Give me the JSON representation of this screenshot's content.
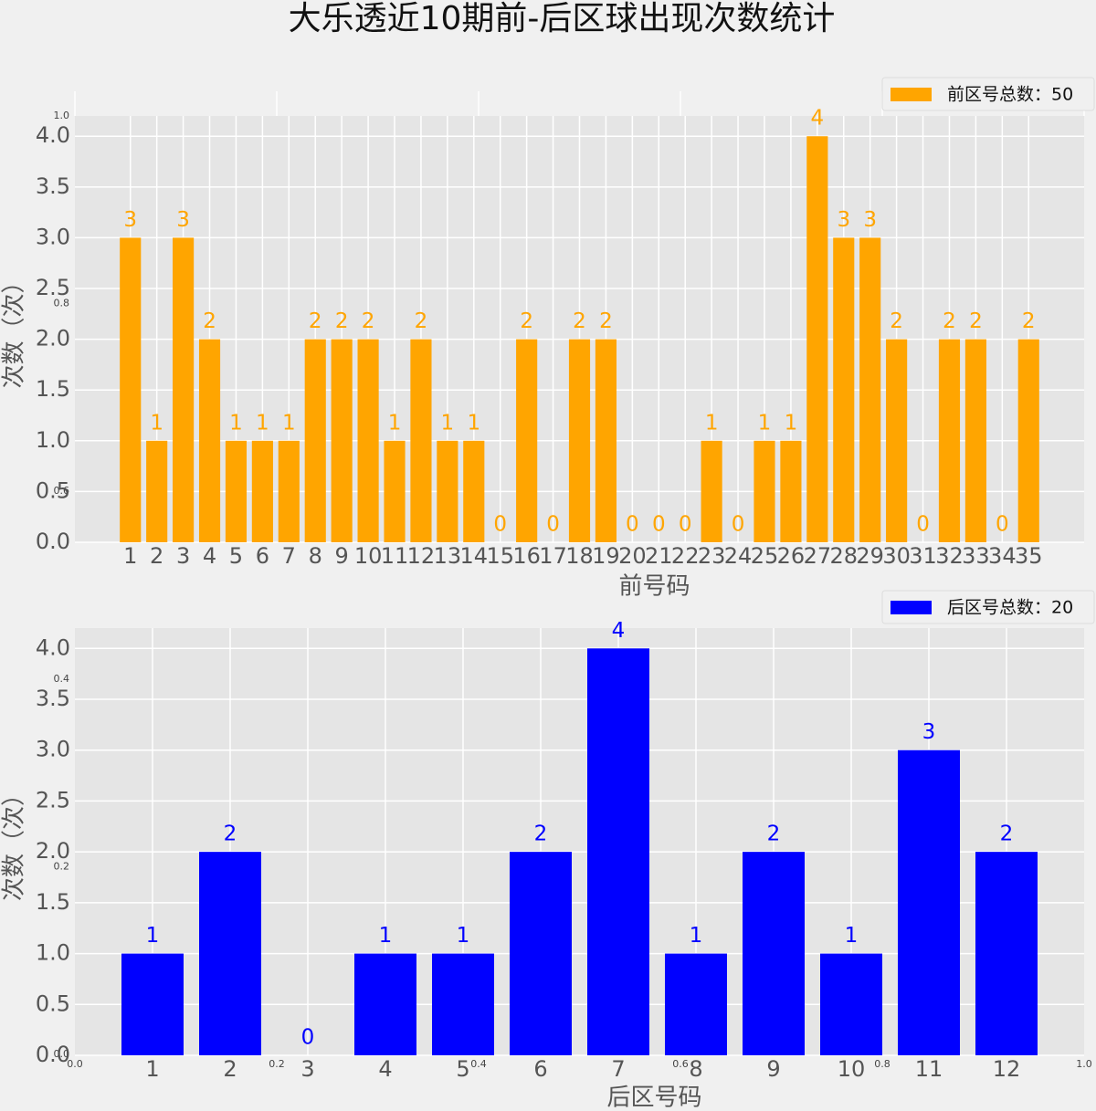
{
  "title": "大乐透近10期前-后区球出现次数统计",
  "chart_data": [
    {
      "type": "bar",
      "xlabel": "前号码",
      "ylabel": "次数（次）",
      "categories": [
        "1",
        "2",
        "3",
        "4",
        "5",
        "6",
        "7",
        "8",
        "9",
        "10",
        "11",
        "12",
        "13",
        "14",
        "15",
        "16",
        "17",
        "18",
        "19",
        "20",
        "21",
        "22",
        "23",
        "24",
        "25",
        "26",
        "27",
        "28",
        "29",
        "30",
        "31",
        "32",
        "33",
        "34",
        "35"
      ],
      "series": [
        {
          "name": "前区号总数：50",
          "color": "#ffa500",
          "values": [
            3,
            1,
            3,
            2,
            1,
            1,
            1,
            2,
            2,
            2,
            1,
            2,
            1,
            1,
            0,
            2,
            0,
            2,
            2,
            0,
            0,
            0,
            1,
            0,
            1,
            1,
            4,
            3,
            3,
            2,
            0,
            2,
            2,
            0,
            2
          ]
        }
      ],
      "ylim": [
        0,
        4.2
      ],
      "yticks": [
        {
          "value": 0,
          "label": "0.0"
        },
        {
          "value": 0.5,
          "label": "0.5"
        },
        {
          "value": 1,
          "label": "1.0"
        },
        {
          "value": 1.5,
          "label": "1.5"
        },
        {
          "value": 2,
          "label": "2.0"
        },
        {
          "value": 2.5,
          "label": "2.5"
        },
        {
          "value": 3,
          "label": "3.0"
        },
        {
          "value": 3.5,
          "label": "3.5"
        },
        {
          "value": 4,
          "label": "4.0"
        }
      ],
      "grid": true,
      "legend": "upper right"
    },
    {
      "type": "bar",
      "xlabel": "后区号码",
      "ylabel": "次数（次）",
      "categories": [
        "1",
        "2",
        "3",
        "4",
        "5",
        "6",
        "7",
        "8",
        "9",
        "10",
        "11",
        "12"
      ],
      "series": [
        {
          "name": "后区号总数：20",
          "color": "#0000ff",
          "values": [
            1,
            2,
            0,
            1,
            1,
            2,
            4,
            1,
            2,
            1,
            3,
            2
          ]
        }
      ],
      "ylim": [
        0,
        4.2
      ],
      "yticks": [
        {
          "value": 0,
          "label": "0.0"
        },
        {
          "value": 0.5,
          "label": "0.5"
        },
        {
          "value": 1,
          "label": "1.0"
        },
        {
          "value": 1.5,
          "label": "1.5"
        },
        {
          "value": 2,
          "label": "2.0"
        },
        {
          "value": 2.5,
          "label": "2.5"
        },
        {
          "value": 3,
          "label": "3.0"
        },
        {
          "value": 3.5,
          "label": "3.5"
        },
        {
          "value": 4,
          "label": "4.0"
        }
      ],
      "grid": true,
      "legend": "upper right"
    },
    {
      "type": "blank",
      "xlim": [
        0,
        1
      ],
      "xticks": [
        {
          "value": 0,
          "label": "0.0"
        },
        {
          "value": 0.2,
          "label": "0.2"
        },
        {
          "value": 0.4,
          "label": "0.4"
        },
        {
          "value": 0.6,
          "label": "0.6"
        },
        {
          "value": 0.8,
          "label": "0.8"
        },
        {
          "value": 1,
          "label": "1.0"
        }
      ],
      "ylim": [
        0,
        1
      ],
      "yticks": [
        {
          "value": 0,
          "label": "0.0"
        },
        {
          "value": 0.2,
          "label": "0.2"
        },
        {
          "value": 0.4,
          "label": "0.4"
        },
        {
          "value": 0.6,
          "label": "0.6"
        },
        {
          "value": 0.8,
          "label": "0.8"
        },
        {
          "value": 1,
          "label": "1.0"
        }
      ]
    }
  ]
}
